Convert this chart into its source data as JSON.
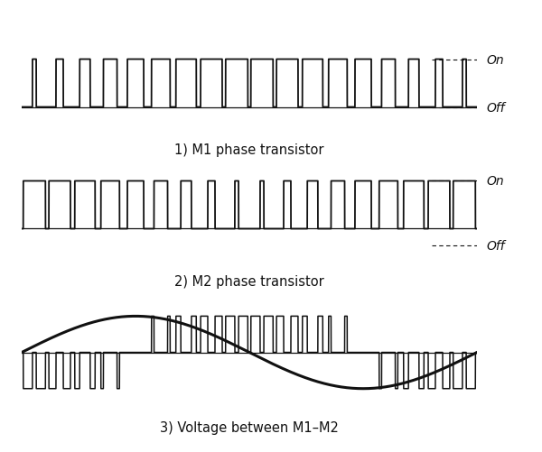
{
  "title1": "1) M1 phase transistor",
  "title2": "2) M2 phase transistor",
  "title3": "3) Voltage between M1–M2",
  "on_label": "On",
  "off_label": "Off",
  "bg_color": "#ffffff",
  "line_color": "#111111",
  "text_color": "#111111",
  "font_size": 10.5,
  "label_font_size": 10,
  "T": 1.0,
  "n_pulses": 18,
  "m1_duty_min": 0.08,
  "m1_duty_max": 0.88,
  "m2_duty_min": 0.08,
  "m2_duty_max": 0.88
}
